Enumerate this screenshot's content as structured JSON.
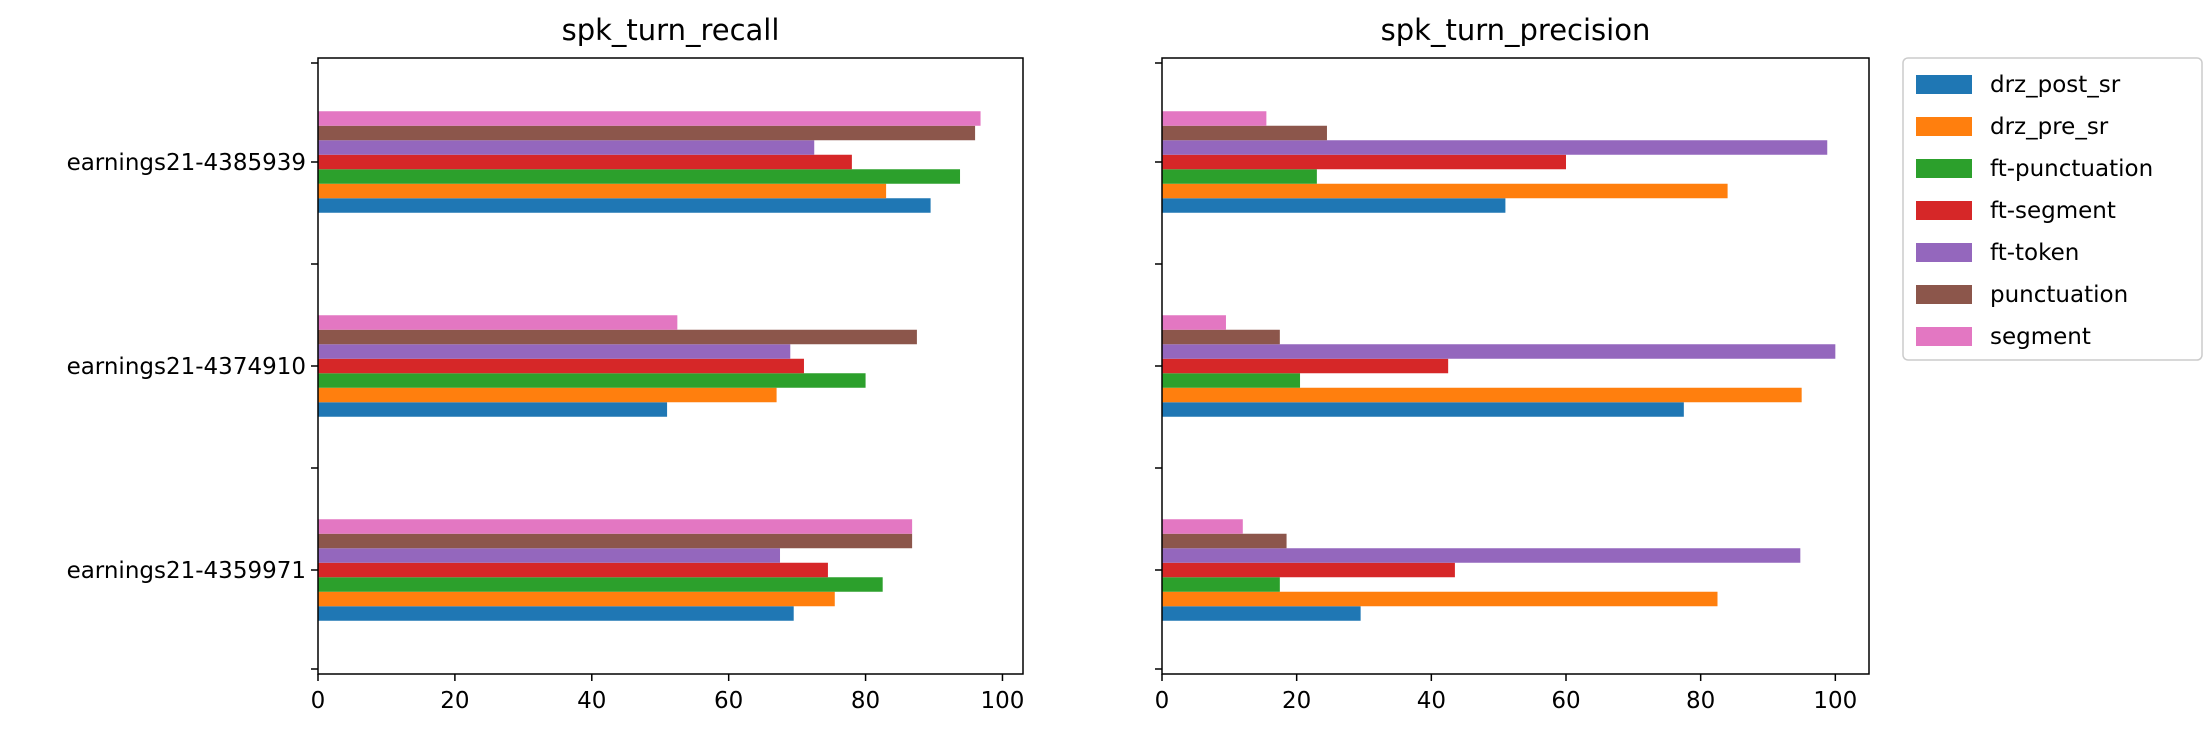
{
  "chart_data": [
    {
      "type": "bar",
      "orientation": "horizontal",
      "title": "spk_turn_recall",
      "categories": [
        "earnings21-4359971",
        "earnings21-4374910",
        "earnings21-4385939"
      ],
      "xlim": [
        0,
        103
      ],
      "xticks": [
        0,
        20,
        40,
        60,
        80,
        100
      ],
      "series": [
        {
          "name": "drz_post_sr",
          "values": [
            69.5,
            51.0,
            89.5
          ]
        },
        {
          "name": "drz_pre_sr",
          "values": [
            75.5,
            67.0,
            83.0
          ]
        },
        {
          "name": "ft-punctuation",
          "values": [
            82.5,
            80.0,
            93.8
          ]
        },
        {
          "name": "ft-segment",
          "values": [
            74.5,
            71.0,
            78.0
          ]
        },
        {
          "name": "ft-token",
          "values": [
            67.5,
            69.0,
            72.5
          ]
        },
        {
          "name": "punctuation",
          "values": [
            86.8,
            87.5,
            96.0
          ]
        },
        {
          "name": "segment",
          "values": [
            86.8,
            52.5,
            96.8
          ]
        }
      ]
    },
    {
      "type": "bar",
      "orientation": "horizontal",
      "title": "spk_turn_precision",
      "categories": [
        "earnings21-4359971",
        "earnings21-4374910",
        "earnings21-4385939"
      ],
      "xlim": [
        0,
        105
      ],
      "xticks": [
        0,
        20,
        40,
        60,
        80,
        100
      ],
      "series": [
        {
          "name": "drz_post_sr",
          "values": [
            29.5,
            77.5,
            51.0
          ]
        },
        {
          "name": "drz_pre_sr",
          "values": [
            82.5,
            95.0,
            84.0
          ]
        },
        {
          "name": "ft-punctuation",
          "values": [
            17.5,
            20.5,
            23.0
          ]
        },
        {
          "name": "ft-segment",
          "values": [
            43.5,
            42.5,
            60.0
          ]
        },
        {
          "name": "ft-token",
          "values": [
            94.8,
            100.0,
            98.8
          ]
        },
        {
          "name": "punctuation",
          "values": [
            18.5,
            17.5,
            24.5
          ]
        },
        {
          "name": "segment",
          "values": [
            12.0,
            9.5,
            15.5
          ]
        }
      ]
    }
  ],
  "legend": {
    "placement": "outside-right",
    "entries": [
      "drz_post_sr",
      "drz_pre_sr",
      "ft-punctuation",
      "ft-segment",
      "ft-token",
      "punctuation",
      "segment"
    ]
  },
  "colors": {
    "drz_post_sr": "#1f77b4",
    "drz_pre_sr": "#ff7f0e",
    "ft-punctuation": "#2ca02c",
    "ft-segment": "#d62728",
    "ft-token": "#9467bd",
    "punctuation": "#8c564b",
    "segment": "#e377c2"
  }
}
